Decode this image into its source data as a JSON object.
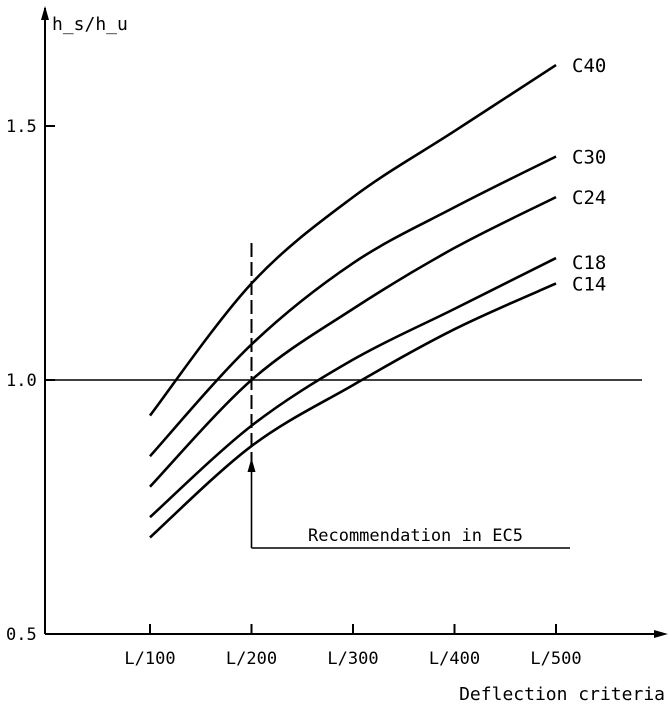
{
  "chart_data": {
    "type": "line",
    "ylabel": "h_s/h_u",
    "xlabel": "Deflection criteria",
    "x_categories": [
      "L/100",
      "L/200",
      "L/300",
      "L/400",
      "L/500"
    ],
    "x": [
      100,
      200,
      300,
      400,
      500
    ],
    "y_ticks": [
      "0.5",
      "1.0",
      "1.5"
    ],
    "ylim": [
      0.5,
      1.7
    ],
    "reference_line": {
      "y": 1.0
    },
    "recommendation": {
      "x": 200,
      "label": "Recommendation in EC5"
    },
    "grid": false,
    "series": [
      {
        "name": "C40",
        "values": [
          0.93,
          1.19,
          1.36,
          1.49,
          1.62
        ]
      },
      {
        "name": "C30",
        "values": [
          0.85,
          1.07,
          1.23,
          1.34,
          1.44
        ]
      },
      {
        "name": "C24",
        "values": [
          0.79,
          1.0,
          1.14,
          1.26,
          1.36
        ]
      },
      {
        "name": "C18",
        "values": [
          0.73,
          0.91,
          1.04,
          1.14,
          1.24
        ]
      },
      {
        "name": "C14",
        "values": [
          0.69,
          0.87,
          0.99,
          1.1,
          1.19
        ]
      }
    ]
  }
}
